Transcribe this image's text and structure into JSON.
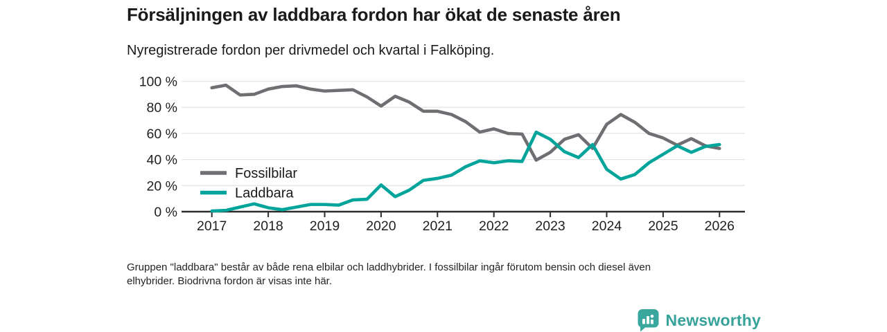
{
  "header": {
    "title": "Försäljningen av laddbara fordon har ökat de senaste åren",
    "subtitle": "Nyregistrerade fordon per drivmedel och kvartal i Falköping."
  },
  "footnote": {
    "lines": [
      "Gruppen \"laddbara\" består av både rena elbilar och laddhybrider. I fossilbilar ingår förutom bensin och diesel även",
      "elhybrider. Biodrivna fordon är visas inte här."
    ]
  },
  "logo": {
    "text": "Newsworthy",
    "color": "#36a29a",
    "icon": "newsworthy-bar-chart-pin-icon"
  },
  "chart_data": {
    "type": "line",
    "title": "Försäljningen av laddbara fordon har ökat de senaste åren",
    "subtitle": "Nyregistrerade fordon per drivmedel och kvartal i Falköping.",
    "x_start": "2017-Q1",
    "x_frequency": "quarterly",
    "x_tick_labels": [
      "2017",
      "2018",
      "2019",
      "2020",
      "2021",
      "2022",
      "2023",
      "2024",
      "2025",
      "2026"
    ],
    "y_ticks": [
      0,
      20,
      40,
      60,
      80,
      100
    ],
    "y_tick_labels": [
      "0 %",
      "20 %",
      "40 %",
      "60 %",
      "80 %",
      "100 %"
    ],
    "ylim": [
      0,
      100
    ],
    "ylabel": "",
    "xlabel": "",
    "grid": true,
    "legend_position": "inside-left",
    "axis_color": "#2b2b2b",
    "grid_color": "#e4e4e6",
    "tick_label_color": "#1f1f1f",
    "series": [
      {
        "name": "Fossilbilar",
        "color": "#6e6f72",
        "values": [
          95,
          97,
          89.5,
          90,
          94,
          96,
          96.5,
          94,
          92.5,
          93,
          93.5,
          88,
          81,
          88.5,
          84,
          77,
          77,
          74.5,
          69,
          61,
          63.5,
          60,
          59.5,
          39.5,
          45.5,
          55.5,
          59,
          48.5,
          67,
          74.5,
          68.5,
          60,
          56.5,
          51,
          56,
          50.5,
          48.5
        ]
      },
      {
        "name": "Laddbara",
        "color": "#00a49a",
        "values": [
          0.5,
          1,
          3.5,
          6,
          3,
          1.5,
          3.5,
          5.5,
          5.5,
          5,
          9,
          9.5,
          20.5,
          11.5,
          16.5,
          24,
          25.5,
          28,
          34.5,
          39,
          37.5,
          39,
          38.5,
          61,
          55.5,
          46,
          41.5,
          51.5,
          32.5,
          25,
          28.5,
          37.5,
          44,
          50.5,
          45.5,
          50,
          51.5
        ]
      }
    ]
  }
}
